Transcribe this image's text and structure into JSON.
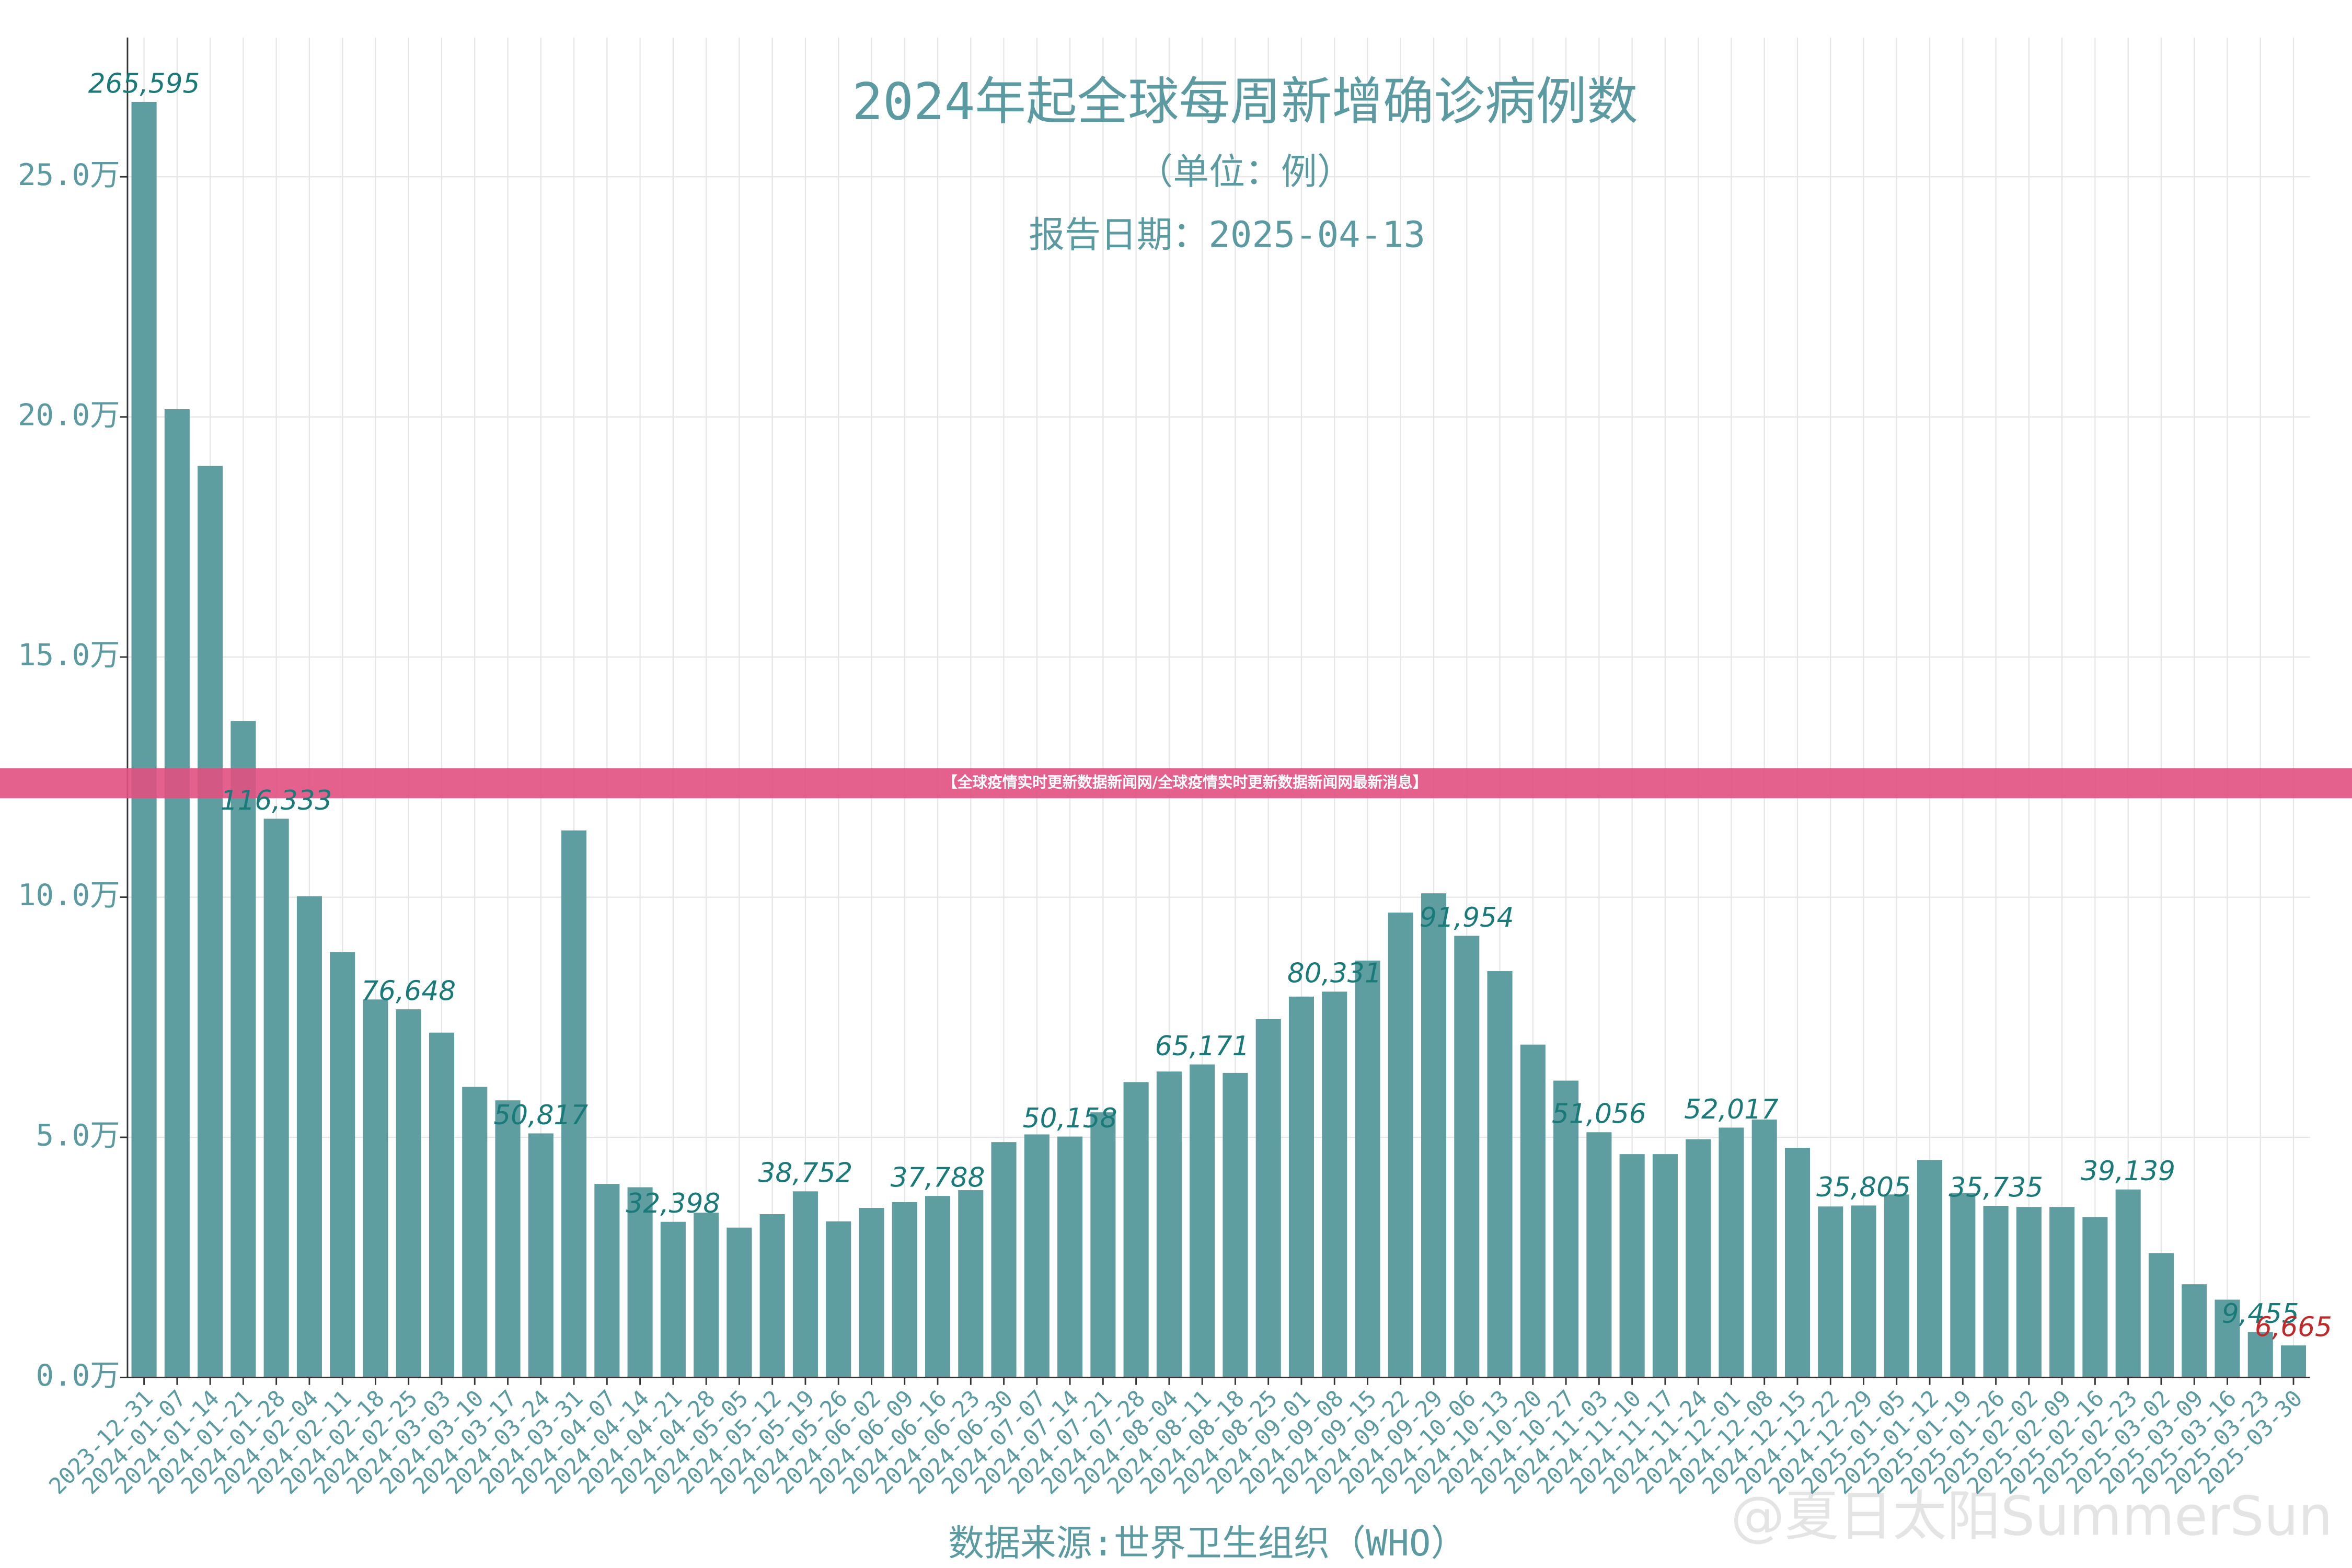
{
  "chart_data": {
    "type": "bar",
    "title": "2024年起全球每周新增确诊病例数",
    "subtitle": "（单位：例）",
    "report_date": "报告日期：2025-04-13",
    "source": "数据来源:世界卫生组织（WHO）",
    "watermark": "@夏日太阳SummerSun",
    "banner": "【全球疫情实时更新数据新闻网/全球疫情实时更新数据新闻网最新消息】",
    "color": "#5f9ea0",
    "label_color": "#1a7a7a",
    "highlight_color": "#c0282a",
    "grid": true,
    "categories": [
      "2023-12-31",
      "2024-01-07",
      "2024-01-14",
      "2024-01-21",
      "2024-01-28",
      "2024-02-04",
      "2024-02-11",
      "2024-02-18",
      "2024-02-25",
      "2024-03-03",
      "2024-03-10",
      "2024-03-17",
      "2024-03-24",
      "2024-03-31",
      "2024-04-07",
      "2024-04-14",
      "2024-04-21",
      "2024-04-28",
      "2024-05-05",
      "2024-05-12",
      "2024-05-19",
      "2024-05-26",
      "2024-06-02",
      "2024-06-09",
      "2024-06-16",
      "2024-06-23",
      "2024-06-30",
      "2024-07-07",
      "2024-07-14",
      "2024-07-21",
      "2024-07-28",
      "2024-08-04",
      "2024-08-11",
      "2024-08-18",
      "2024-08-25",
      "2024-09-01",
      "2024-09-08",
      "2024-09-15",
      "2024-09-22",
      "2024-09-29",
      "2024-10-06",
      "2024-10-13",
      "2024-10-20",
      "2024-10-27",
      "2024-11-03",
      "2024-11-10",
      "2024-11-17",
      "2024-11-24",
      "2024-12-01",
      "2024-12-08",
      "2024-12-15",
      "2024-12-22",
      "2024-12-29",
      "2025-01-05",
      "2025-01-12",
      "2025-01-19",
      "2025-01-26",
      "2025-02-02",
      "2025-02-09",
      "2025-02-16",
      "2025-02-23",
      "2025-03-02",
      "2025-03-09",
      "2025-03-16",
      "2025-03-23",
      "2025-03-30"
    ],
    "values": [
      26.5595,
      20.16,
      18.98,
      13.67,
      11.6333,
      10.02,
      8.86,
      7.87,
      7.6648,
      7.18,
      6.05,
      5.77,
      5.0817,
      11.39,
      4.03,
      3.96,
      3.2398,
      3.43,
      3.12,
      3.4,
      3.8752,
      3.25,
      3.53,
      3.65,
      3.7788,
      3.9,
      4.9,
      5.06,
      5.0158,
      5.52,
      6.15,
      6.37,
      6.5171,
      6.34,
      7.46,
      7.93,
      8.0331,
      8.68,
      9.68,
      10.08,
      9.1954,
      8.46,
      6.93,
      6.18,
      5.1056,
      4.65,
      4.65,
      4.96,
      5.2017,
      5.37,
      4.78,
      3.56,
      3.5805,
      3.81,
      4.53,
      3.84,
      3.5735,
      3.55,
      3.55,
      3.34,
      3.9139,
      2.59,
      1.94,
      1.62,
      0.9455,
      0.6665
    ],
    "value_labels": [
      "265,595",
      null,
      null,
      null,
      "116,333",
      null,
      null,
      null,
      "76,648",
      null,
      null,
      null,
      "50,817",
      null,
      null,
      null,
      "32,398",
      null,
      null,
      null,
      "38,752",
      null,
      null,
      null,
      "37,788",
      null,
      null,
      null,
      "50,158",
      null,
      null,
      null,
      "65,171",
      null,
      null,
      null,
      "80,331",
      null,
      null,
      null,
      "91,954",
      null,
      null,
      null,
      "51,056",
      null,
      null,
      null,
      "52,017",
      null,
      null,
      null,
      "35,805",
      null,
      null,
      null,
      "35,735",
      null,
      null,
      null,
      "39,139",
      null,
      null,
      null,
      "9,455",
      "6,665"
    ],
    "ylim": [
      0,
      27.9
    ],
    "yticks": [
      {
        "value": 0,
        "label": "0.0万"
      },
      {
        "value": 5,
        "label": "5.0万"
      },
      {
        "value": 10,
        "label": "10.0万"
      },
      {
        "value": 15,
        "label": "15.0万"
      },
      {
        "value": 20,
        "label": "20.0万"
      },
      {
        "value": 25,
        "label": "25.0万"
      }
    ]
  }
}
